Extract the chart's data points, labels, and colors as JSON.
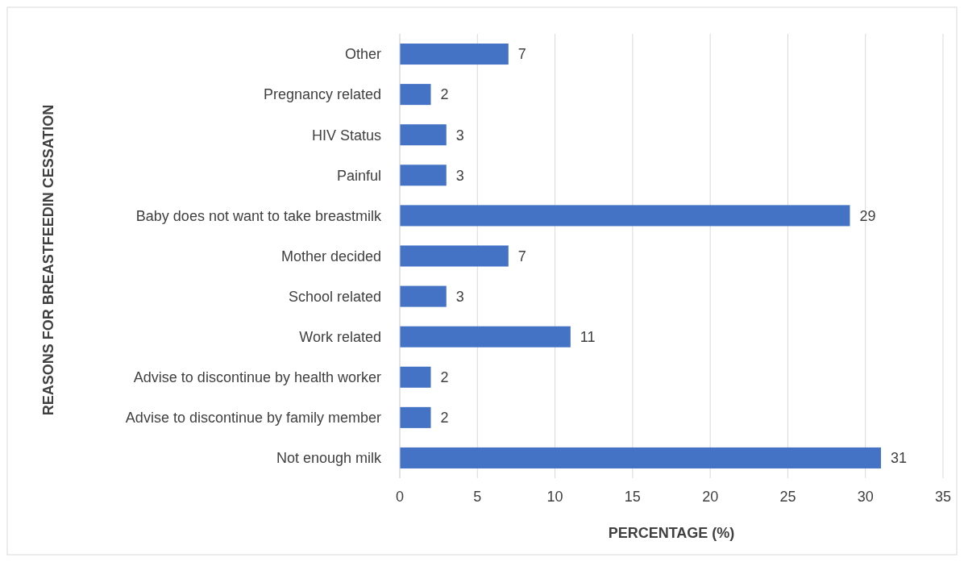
{
  "chart_data": {
    "type": "bar",
    "orientation": "horizontal",
    "xlabel": "PERCENTAGE (%)",
    "ylabel": "REASONS FOR BREASTFEEDIN CESSATION",
    "categories": [
      "Other",
      "Pregnancy related",
      "HIV Status",
      "Painful",
      "Baby does not want to take breastmilk",
      "Mother decided",
      "School related",
      "Work related",
      "Advise to discontinue by health worker",
      "Advise to discontinue by family member",
      "Not enough milk"
    ],
    "values": [
      7,
      2,
      3,
      3,
      29,
      7,
      3,
      11,
      2,
      2,
      31
    ],
    "color": "#4472c4",
    "xlim": [
      0,
      35
    ],
    "xticks": [
      0,
      5,
      10,
      15,
      20,
      25,
      30,
      35
    ],
    "grid": "x",
    "data_labels": true
  }
}
